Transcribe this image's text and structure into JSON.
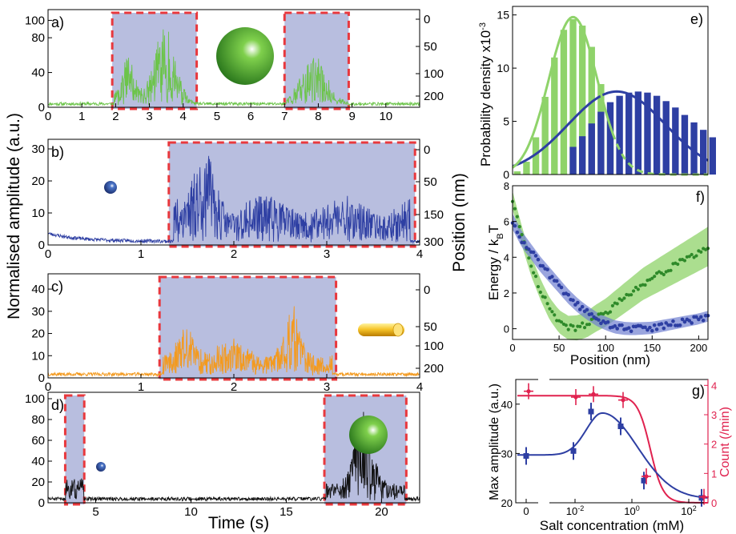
{
  "figure": {
    "left_ylabel": "Normalised amplitude (a.u.)",
    "right_ylabel": "Position (nm)",
    "bottom_xlabel": "Time (s)"
  },
  "colors": {
    "green": "#6cc44a",
    "blue": "#2e3fa3",
    "orange": "#f39a1f",
    "black": "#111111",
    "shade": "#b8bedf",
    "dash": "#e8383d",
    "red": "#e0224f",
    "light_green": "#8fd36a"
  },
  "chart_data": [
    {
      "id": "a",
      "panel_label": "a)",
      "type": "line",
      "series": [
        {
          "color": "green"
        }
      ],
      "xlim": [
        0,
        11
      ],
      "ylim": [
        0,
        105
      ],
      "xticks": [
        "0",
        "1",
        "2",
        "3",
        "4",
        "5",
        "6",
        "7",
        "8",
        "9",
        "10"
      ],
      "yticks": [
        "0",
        "40",
        "80",
        "100"
      ],
      "right_ticks": [
        "0",
        "50",
        "100",
        "200"
      ],
      "bursts": [
        [
          1.9,
          4.4
        ],
        [
          7.0,
          8.9
        ]
      ],
      "illustration": "large-green-sphere"
    },
    {
      "id": "b",
      "panel_label": "b)",
      "type": "line",
      "series": [
        {
          "color": "blue"
        }
      ],
      "xlim": [
        0,
        4
      ],
      "ylim": [
        0,
        31
      ],
      "xticks": [
        "0",
        "1",
        "2",
        "3",
        "4"
      ],
      "yticks": [
        "0",
        "10",
        "20",
        "30"
      ],
      "right_ticks": [
        "0",
        "50",
        "150",
        "300"
      ],
      "bursts": [
        [
          1.3,
          3.95
        ]
      ],
      "illustration": "small-blue-sphere"
    },
    {
      "id": "c",
      "panel_label": "c)",
      "type": "line",
      "series": [
        {
          "color": "orange"
        }
      ],
      "xlim": [
        0,
        4
      ],
      "ylim": [
        0,
        44
      ],
      "xticks": [
        "0",
        "1",
        "2",
        "3",
        "4"
      ],
      "yticks": [
        "0",
        "10",
        "20",
        "30",
        "40"
      ],
      "right_ticks": [
        "0",
        "50",
        "100",
        "200"
      ],
      "bursts": [
        [
          1.2,
          3.1
        ]
      ],
      "illustration": "gold-nanorod"
    },
    {
      "id": "d",
      "panel_label": "d)",
      "type": "line",
      "series": [
        {
          "color": "black"
        }
      ],
      "xlim": [
        2.5,
        22
      ],
      "ylim": [
        0,
        100
      ],
      "xticks": [
        "5",
        "10",
        "15",
        "20"
      ],
      "yticks": [
        "0",
        "20",
        "40",
        "60",
        "80",
        "100"
      ],
      "bursts": [
        [
          3.4,
          4.4
        ],
        [
          17.0,
          21.3
        ]
      ],
      "illustration": "green-sphere-and-blue-sphere"
    },
    {
      "id": "e",
      "panel_label": "e)",
      "type": "bar",
      "ylabel": "Probability density x10",
      "ylabel_exp": "-3",
      "xlim": [
        0,
        210
      ],
      "ylim": [
        0,
        15.5
      ],
      "yticks": [
        "0",
        "5",
        "10",
        "15"
      ],
      "bin_width": 10,
      "series": [
        {
          "color": "light_green",
          "bins_start": 0,
          "values": [
            0.3,
            1.2,
            3.5,
            7.3,
            11.0,
            13.6,
            14.6,
            14.0,
            12.0,
            8.5,
            5.0
          ]
        },
        {
          "color": "blue",
          "bins_start": 60,
          "values": [
            2.6,
            3.6,
            4.8,
            5.9,
            6.8,
            7.4,
            7.7,
            7.8,
            7.7,
            7.4,
            6.9,
            6.3,
            5.6,
            4.9,
            4.2,
            3.5
          ]
        }
      ],
      "fit_green": {
        "mean": 65,
        "sd": 26,
        "peak": 14.8
      },
      "fit_blue": {
        "mean": 112,
        "sd": 52,
        "peak": 7.8
      }
    },
    {
      "id": "f",
      "panel_label": "f)",
      "type": "scatter",
      "ylabel": "Energy / k",
      "ylabel_sub": "B",
      "ylabel_tail": "T",
      "xlabel": "Position (nm)",
      "xlim": [
        0,
        210
      ],
      "ylim": [
        -0.6,
        8
      ],
      "xticks": [
        "0",
        "50",
        "100",
        "150",
        "200"
      ],
      "yticks": [
        "0",
        "2",
        "4",
        "6",
        "8"
      ],
      "series": [
        {
          "color": "green",
          "x": [
            0,
            10,
            20,
            30,
            40,
            50,
            60,
            70,
            80,
            90,
            100,
            110,
            120,
            130,
            140,
            150,
            160,
            170,
            180,
            190,
            200,
            210
          ],
          "y": [
            7.2,
            5.2,
            3.5,
            2.2,
            1.1,
            0.4,
            0.05,
            0.05,
            0.25,
            0.6,
            0.9,
            1.3,
            1.7,
            2.1,
            2.5,
            2.8,
            3.1,
            3.4,
            3.7,
            4.0,
            4.3,
            4.6
          ]
        },
        {
          "color": "blue",
          "x": [
            0,
            10,
            20,
            30,
            40,
            50,
            60,
            70,
            80,
            90,
            100,
            110,
            120,
            130,
            140,
            150,
            160,
            170,
            180,
            190,
            200,
            210
          ],
          "y": [
            6.0,
            5.0,
            4.3,
            3.6,
            3.0,
            2.4,
            1.8,
            1.3,
            0.9,
            0.55,
            0.3,
            0.1,
            0.02,
            0.0,
            0.02,
            0.05,
            0.15,
            0.25,
            0.35,
            0.45,
            0.55,
            0.7
          ]
        }
      ]
    },
    {
      "id": "g",
      "panel_label": "g)",
      "type": "scatter",
      "xlabel": "Salt concentration (mM)",
      "ylabel": "Max amplitude (a.u.)",
      "ylabel_right": "Count (/min)",
      "xticks": [
        "0",
        "10",
        "10",
        "10"
      ],
      "xtick_exps": [
        "",
        "-2",
        "0",
        "2"
      ],
      "ylim_left": [
        20,
        45
      ],
      "yticks_left": [
        "20",
        "30",
        "40"
      ],
      "ylim_right": [
        0,
        4.2
      ],
      "yticks_right": [
        "0",
        "1",
        "2",
        "3",
        "4"
      ],
      "amplitude": {
        "x": [
          "0",
          "0.02",
          "0.1",
          "2",
          "10",
          "100"
        ],
        "y": [
          29.5,
          30.5,
          38.5,
          35.5,
          24.5,
          21.0
        ]
      },
      "count": {
        "x": [
          "0",
          "0.02",
          "0.1",
          "2",
          "10",
          "100"
        ],
        "y": [
          3.8,
          3.6,
          3.7,
          3.5,
          0.9,
          0.2
        ]
      }
    }
  ]
}
